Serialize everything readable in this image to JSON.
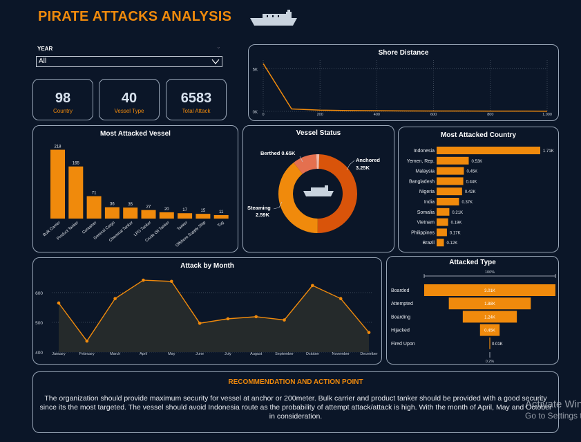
{
  "header": {
    "title": "PIRATE ATTACKS ANALYSIS",
    "ship_icon": "cargo-ship-icon"
  },
  "filter": {
    "label": "YEAR",
    "value": "All"
  },
  "kpis": [
    {
      "value": "98",
      "label": "Country"
    },
    {
      "value": "40",
      "label": "Vessel Type"
    },
    {
      "value": "6583",
      "label": "Total Attack"
    }
  ],
  "colors": {
    "accent": "#f08a0c",
    "background": "#0b1628",
    "border": "#9aa7b8"
  },
  "chart_data": [
    {
      "id": "shore",
      "type": "line",
      "title": "Shore Distance",
      "x": [
        0,
        100,
        200,
        300,
        400,
        500,
        600,
        700,
        800,
        900,
        1000
      ],
      "y": [
        5600,
        280,
        140,
        90,
        70,
        55,
        45,
        40,
        35,
        30,
        25
      ],
      "xticks": [
        "0",
        "200",
        "400",
        "600",
        "800",
        "1,000"
      ],
      "yticks": [
        "0K",
        "5K"
      ],
      "xlim": [
        0,
        1000
      ],
      "ylim": [
        0,
        6000
      ],
      "grid": true
    },
    {
      "id": "vessel",
      "type": "bar",
      "title": "Most Attacked Vessel",
      "categories": [
        "Bulk Carrier",
        "Product Tanker",
        "Container",
        "General Cargo",
        "Chemical Tanker",
        "LPG Tanker",
        "Crude Oil Tanker",
        "Tanker",
        "Offshore Supply Ship",
        "Tug"
      ],
      "values": [
        218,
        165,
        71,
        36,
        35,
        27,
        20,
        17,
        15,
        11
      ],
      "ylim": [
        0,
        230
      ]
    },
    {
      "id": "status",
      "type": "pie",
      "title": "Vessel Status",
      "slices": [
        {
          "label": "Anchored",
          "value_label": "3.25K",
          "value": 3250,
          "color": "#d9540a"
        },
        {
          "label": "Steaming",
          "value_label": "2.59K",
          "value": 2590,
          "color": "#f08a0c"
        },
        {
          "label": "Berthed",
          "value_label": "0.65K",
          "value": 650,
          "color": "#e4704f"
        },
        {
          "label": "",
          "value_label": "",
          "value": 80,
          "color": "#f2b8a6"
        }
      ]
    },
    {
      "id": "country",
      "type": "bar",
      "title": "Most Attacked Country",
      "categories": [
        "Indonesia",
        "Yemen, Rep.",
        "Malaysia",
        "Bangladesh",
        "Nigeria",
        "India",
        "Somalia",
        "Vietnam",
        "Philippines",
        "Brazil"
      ],
      "values": [
        1710,
        530,
        450,
        440,
        420,
        370,
        210,
        190,
        170,
        120
      ],
      "labels": [
        "1.71K",
        "0.53K",
        "0.45K",
        "0.44K",
        "0.42K",
        "0.37K",
        "0.21K",
        "0.19K",
        "0.17K",
        "0.12K"
      ],
      "xlim": [
        0,
        1710
      ]
    },
    {
      "id": "month",
      "type": "area",
      "title": "Attack by Month",
      "categories": [
        "January",
        "February",
        "March",
        "April",
        "May",
        "June",
        "July",
        "August",
        "September",
        "October",
        "November",
        "December"
      ],
      "values": [
        565,
        437,
        580,
        642,
        638,
        497,
        512,
        519,
        508,
        624,
        580,
        466
      ],
      "yticks": [
        400,
        500,
        600
      ],
      "ylim": [
        400,
        670
      ]
    },
    {
      "id": "attack",
      "type": "bar",
      "title": "Attacked Type",
      "categories": [
        "Boarded",
        "Attempted",
        "Boarding",
        "Hijacked",
        "Fired Upon"
      ],
      "values": [
        3010,
        1880,
        1240,
        450,
        10
      ],
      "labels": [
        "3.01K",
        "1.88K",
        "1.24K",
        "0.45K",
        "0.01K"
      ],
      "top_label": "100%",
      "bottom_label": "0.2%"
    }
  ],
  "recommendation": {
    "title": "RECOMMENDATION AND ACTION POINT",
    "text": "The organization should provide maximum security for vessel at anchor or 200meter. Bulk carrier and product tanker should be provided with a good security since its the most targeted. The vessel should avoid Indonesia route as the probability of attempt attack/attack  is high. With the month of April, May and October in consideration."
  },
  "watermark": {
    "line1": "Activate Windows",
    "line2": "Go to Settings to activate Windows."
  }
}
